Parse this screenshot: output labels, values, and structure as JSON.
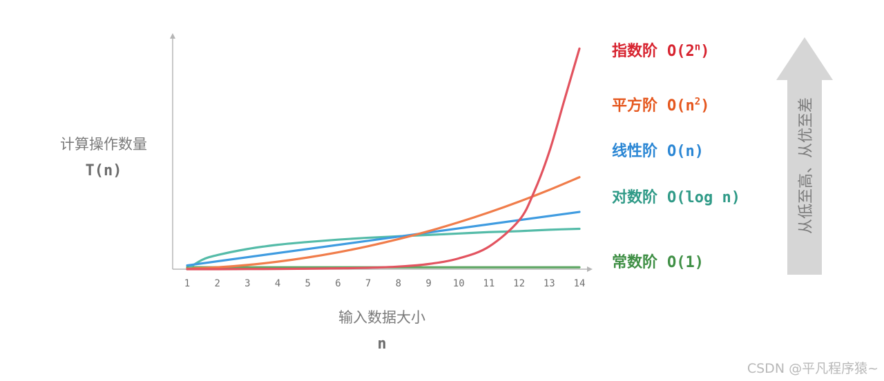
{
  "chart_data": {
    "type": "line",
    "y_axis_label": "计算操作数量",
    "y_axis_symbol": "T(n)",
    "x_axis_label": "输入数据大小",
    "x_axis_symbol": "n",
    "x_ticks": [
      "1",
      "2",
      "3",
      "4",
      "5",
      "6",
      "7",
      "8",
      "9",
      "10",
      "11",
      "12",
      "13",
      "14"
    ],
    "xlim": [
      1,
      14
    ],
    "grid": false,
    "series": [
      {
        "name": "指数阶",
        "expr_text": "O(2ⁿ)",
        "expr_base": "O(2",
        "expr_sup": "n",
        "expr_tail": ")",
        "color": "#e2535f",
        "label_color": "#d7232f",
        "x": [
          1,
          2,
          3,
          4,
          5,
          6,
          7,
          8,
          9,
          10,
          11,
          12,
          12.5,
          13,
          13.5,
          14
        ],
        "y": [
          0.0,
          0.0,
          0.3,
          0.5,
          1.0,
          1.8,
          3.0,
          5.6,
          11,
          23,
          48,
          104,
          165,
          250,
          360,
          470
        ]
      },
      {
        "name": "平方阶",
        "expr_text": "O(n²)",
        "expr_base": "O(n",
        "expr_sup": "2",
        "expr_tail": ")",
        "color": "#f07c4a",
        "label_color": "#e5571e",
        "x": [
          1,
          2,
          3,
          4,
          5,
          6,
          7,
          8,
          9,
          10,
          11,
          12,
          13,
          14
        ],
        "y": [
          1,
          4,
          9,
          16,
          25,
          36,
          49,
          64,
          81,
          100,
          121,
          144,
          169,
          196
        ]
      },
      {
        "name": "线性阶",
        "expr_text": "O(n)",
        "color": "#3e9be0",
        "label_color": "#2a86d4",
        "x": [
          1,
          14
        ],
        "y": [
          8,
          122
        ]
      },
      {
        "name": "对数阶",
        "expr_text": "O(log n)",
        "color": "#54bba8",
        "label_color": "#2f9a87",
        "x": [
          1,
          1.5,
          2,
          3,
          4,
          5,
          6,
          7,
          8,
          9,
          10,
          11,
          12,
          13,
          14
        ],
        "y": [
          0,
          20,
          30,
          43,
          52,
          58,
          63,
          67,
          70,
          73,
          76,
          79,
          81,
          84,
          86
        ]
      },
      {
        "name": "常数阶",
        "expr_text": "O(1)",
        "color": "#60a765",
        "label_color": "#3f8f45",
        "x": [
          1,
          14
        ],
        "y": [
          4,
          4
        ]
      }
    ]
  },
  "arrow_text": "从低至高、从优至差",
  "watermark": "CSDN @平凡程序猿~"
}
